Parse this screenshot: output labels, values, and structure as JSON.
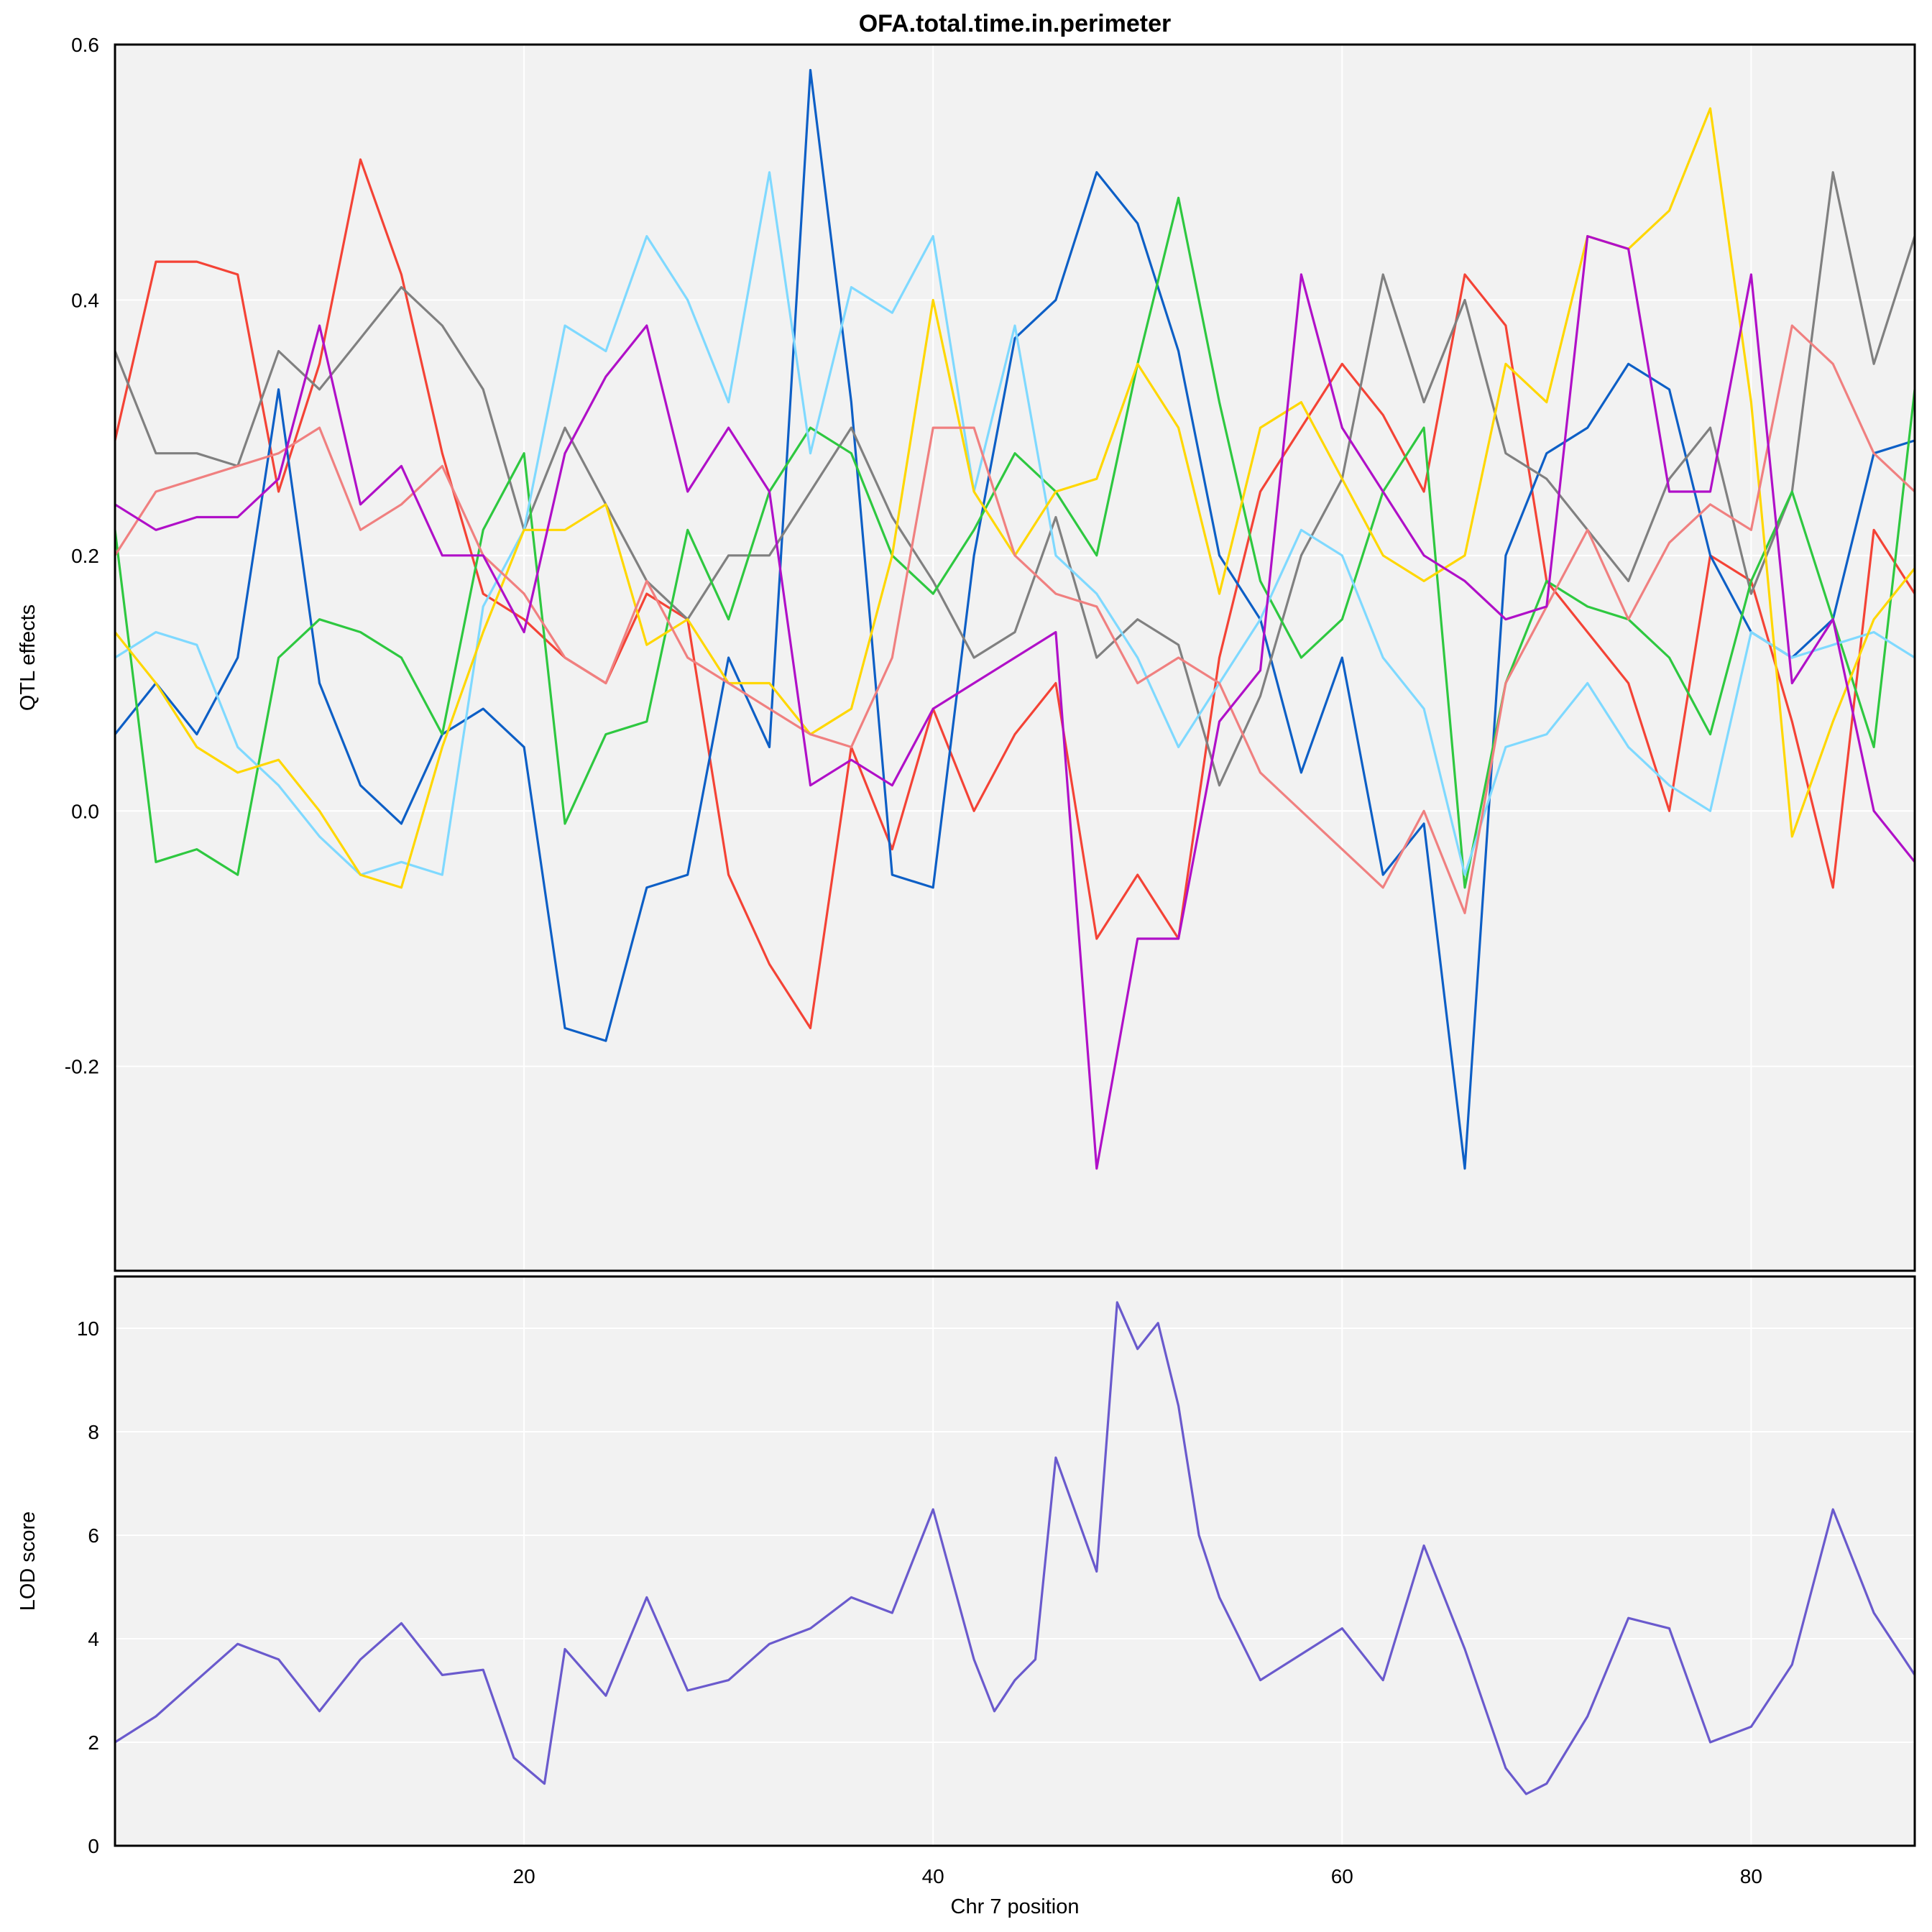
{
  "chart_data": [
    {
      "type": "line",
      "title": "OFA.total.time.in.perimeter",
      "xlabel": "",
      "ylabel": "QTL effects",
      "xlim": [
        0,
        88
      ],
      "ylim": [
        -0.36,
        0.6
      ],
      "xticks": [
        20,
        40,
        60,
        80
      ],
      "yticks": [
        "0.6",
        "0.4",
        "0.2",
        "0.0",
        "-0.2"
      ],
      "ytick_values": [
        0.6,
        0.4,
        0.2,
        0.0,
        -0.2
      ],
      "x": [
        0,
        2,
        4,
        6,
        8,
        10,
        12,
        14,
        16,
        18,
        20,
        22,
        24,
        26,
        28,
        30,
        32,
        34,
        36,
        38,
        40,
        42,
        44,
        46,
        48,
        50,
        52,
        54,
        56,
        58,
        60,
        62,
        64,
        66,
        68,
        70,
        72,
        74,
        76,
        78,
        80,
        82,
        84,
        86,
        88
      ],
      "series": [
        {
          "name": "red",
          "color": "#f44336",
          "values": [
            0.29,
            0.43,
            0.43,
            0.42,
            0.25,
            0.35,
            0.51,
            0.42,
            0.28,
            0.17,
            0.15,
            0.12,
            0.1,
            0.17,
            0.15,
            -0.05,
            -0.12,
            -0.17,
            0.05,
            -0.03,
            0.08,
            0.0,
            0.06,
            0.1,
            -0.1,
            -0.05,
            -0.1,
            0.12,
            0.25,
            0.3,
            0.35,
            0.31,
            0.25,
            0.42,
            0.38,
            0.18,
            0.14,
            0.1,
            0.0,
            0.2,
            0.18,
            0.07,
            -0.06,
            0.22,
            0.17
          ]
        },
        {
          "name": "dark-blue",
          "color": "#0d5fc6",
          "values": [
            0.06,
            0.1,
            0.06,
            0.12,
            0.33,
            0.1,
            0.02,
            -0.01,
            0.06,
            0.08,
            0.05,
            -0.17,
            -0.18,
            -0.06,
            -0.05,
            0.12,
            0.05,
            0.58,
            0.32,
            -0.05,
            -0.06,
            0.2,
            0.37,
            0.4,
            0.5,
            0.46,
            0.36,
            0.2,
            0.15,
            0.03,
            0.12,
            -0.05,
            -0.01,
            -0.28,
            0.2,
            0.28,
            0.3,
            0.35,
            0.33,
            0.2,
            0.14,
            0.12,
            0.15,
            0.28,
            0.29
          ]
        },
        {
          "name": "gray",
          "color": "#808080",
          "values": [
            0.36,
            0.28,
            0.28,
            0.27,
            0.36,
            0.33,
            0.37,
            0.41,
            0.38,
            0.33,
            0.22,
            0.3,
            0.24,
            0.18,
            0.15,
            0.2,
            0.2,
            0.25,
            0.3,
            0.23,
            0.18,
            0.12,
            0.14,
            0.23,
            0.12,
            0.15,
            0.13,
            0.02,
            0.09,
            0.2,
            0.26,
            0.42,
            0.32,
            0.4,
            0.28,
            0.26,
            0.22,
            0.18,
            0.26,
            0.3,
            0.17,
            0.25,
            0.5,
            0.35,
            0.45
          ]
        },
        {
          "name": "green",
          "color": "#2ec840",
          "values": [
            0.22,
            -0.04,
            -0.03,
            -0.05,
            0.12,
            0.15,
            0.14,
            0.12,
            0.06,
            0.22,
            0.28,
            -0.01,
            0.06,
            0.07,
            0.22,
            0.15,
            0.25,
            0.3,
            0.28,
            0.2,
            0.17,
            0.22,
            0.28,
            0.25,
            0.2,
            0.35,
            0.48,
            0.32,
            0.18,
            0.12,
            0.15,
            0.25,
            0.3,
            -0.06,
            0.1,
            0.18,
            0.16,
            0.15,
            0.12,
            0.06,
            0.18,
            0.25,
            0.15,
            0.05,
            0.33
          ]
        },
        {
          "name": "light-blue",
          "color": "#7fd9ff",
          "values": [
            0.12,
            0.14,
            0.13,
            0.05,
            0.02,
            -0.02,
            -0.05,
            -0.04,
            -0.05,
            0.16,
            0.22,
            0.38,
            0.36,
            0.45,
            0.4,
            0.32,
            0.5,
            0.28,
            0.41,
            0.39,
            0.45,
            0.25,
            0.38,
            0.2,
            0.17,
            0.12,
            0.05,
            0.1,
            0.15,
            0.22,
            0.2,
            0.12,
            0.08,
            -0.05,
            0.05,
            0.06,
            0.1,
            0.05,
            0.02,
            0.0,
            0.14,
            0.12,
            0.13,
            0.14,
            0.12
          ]
        },
        {
          "name": "yellow",
          "color": "#ffd700",
          "values": [
            0.14,
            0.1,
            0.05,
            0.03,
            0.04,
            0.0,
            -0.05,
            -0.06,
            0.05,
            0.14,
            0.22,
            0.22,
            0.24,
            0.13,
            0.15,
            0.1,
            0.1,
            0.06,
            0.08,
            0.2,
            0.4,
            0.25,
            0.2,
            0.25,
            0.26,
            0.35,
            0.3,
            0.17,
            0.3,
            0.32,
            0.26,
            0.2,
            0.18,
            0.2,
            0.35,
            0.32,
            0.45,
            0.44,
            0.47,
            0.55,
            0.32,
            -0.02,
            0.07,
            0.15,
            0.19
          ]
        },
        {
          "name": "salmon",
          "color": "#f08080",
          "values": [
            0.2,
            0.25,
            0.26,
            0.27,
            0.28,
            0.3,
            0.22,
            0.24,
            0.27,
            0.2,
            0.17,
            0.12,
            0.1,
            0.18,
            0.12,
            0.1,
            0.08,
            0.06,
            0.05,
            0.12,
            0.3,
            0.3,
            0.2,
            0.17,
            0.16,
            0.1,
            0.12,
            0.1,
            0.03,
            0.0,
            -0.03,
            -0.06,
            0.0,
            -0.08,
            0.1,
            0.16,
            0.22,
            0.15,
            0.21,
            0.24,
            0.22,
            0.38,
            0.35,
            0.28,
            0.25
          ]
        },
        {
          "name": "purple",
          "color": "#b010c8",
          "values": [
            0.24,
            0.22,
            0.23,
            0.23,
            0.26,
            0.38,
            0.24,
            0.27,
            0.2,
            0.2,
            0.14,
            0.28,
            0.34,
            0.38,
            0.25,
            0.3,
            0.25,
            0.02,
            0.04,
            0.02,
            0.08,
            0.1,
            0.12,
            0.14,
            -0.28,
            -0.1,
            -0.1,
            0.07,
            0.11,
            0.42,
            0.3,
            0.25,
            0.2,
            0.18,
            0.15,
            0.16,
            0.45,
            0.44,
            0.25,
            0.25,
            0.42,
            0.1,
            0.15,
            0.0,
            -0.04
          ]
        }
      ]
    },
    {
      "type": "line",
      "title": "",
      "xlabel": "Chr 7 position",
      "ylabel": "LOD score",
      "xlim": [
        0,
        88
      ],
      "ylim": [
        0,
        11
      ],
      "xticks": [
        "20",
        "40",
        "60",
        "80"
      ],
      "xtick_values": [
        20,
        40,
        60,
        80
      ],
      "yticks": [
        "0",
        "2",
        "4",
        "6",
        "8",
        "10"
      ],
      "ytick_values": [
        0,
        2,
        4,
        6,
        8,
        10
      ],
      "x": [
        0,
        2,
        4,
        6,
        8,
        10,
        12,
        14,
        16,
        18,
        19.5,
        21,
        22,
        24,
        26,
        28,
        30,
        32,
        34,
        36,
        38,
        40,
        42,
        43,
        44,
        45,
        46,
        48,
        49,
        50,
        51,
        52,
        53,
        54,
        56,
        58,
        60,
        62,
        63,
        64,
        66,
        68,
        69,
        70,
        72,
        74,
        76,
        78,
        80,
        82,
        84,
        86,
        88
      ],
      "series": [
        {
          "name": "LOD",
          "color": "#6a5acd",
          "values": [
            2.0,
            2.5,
            3.2,
            3.9,
            3.6,
            2.6,
            3.6,
            4.3,
            3.3,
            3.4,
            1.7,
            1.2,
            3.8,
            2.9,
            4.8,
            3.0,
            3.2,
            3.9,
            4.2,
            4.8,
            4.5,
            6.5,
            3.6,
            2.6,
            3.2,
            3.6,
            7.5,
            5.3,
            10.5,
            9.6,
            10.1,
            8.5,
            6.0,
            4.8,
            3.2,
            3.7,
            4.2,
            3.2,
            4.5,
            5.8,
            3.8,
            1.5,
            1.0,
            1.2,
            2.5,
            4.4,
            4.2,
            2.0,
            2.3,
            3.5,
            6.5,
            4.5,
            3.3
          ]
        }
      ]
    }
  ]
}
